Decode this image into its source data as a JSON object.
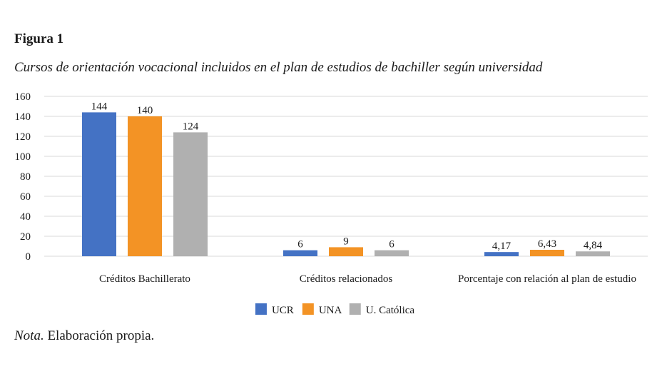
{
  "figure": {
    "label": "Figura 1",
    "caption": "Cursos de orientación vocacional incluidos en el plan de estudios de bachiller según universidad",
    "note_label": "Nota.",
    "note_text": " Elaboración propia."
  },
  "chart_data": {
    "type": "bar",
    "categories": [
      "Créditos Bachillerato",
      "Créditos relacionados",
      "Porcentaje con  relación al plan de estudio"
    ],
    "series": [
      {
        "name": "UCR",
        "color": "#4472c4",
        "values": [
          144,
          6,
          4.17
        ],
        "labels": [
          "144",
          "6",
          "4,17"
        ]
      },
      {
        "name": "UNA",
        "color": "#f39325",
        "values": [
          140,
          9,
          6.43
        ],
        "labels": [
          "140",
          "9",
          "6,43"
        ]
      },
      {
        "name": "U. Católica",
        "color": "#b0b0b0",
        "values": [
          124,
          6,
          4.84
        ],
        "labels": [
          "124",
          "6",
          "4,84"
        ]
      }
    ],
    "ylim": [
      0,
      160
    ],
    "yticks": [
      0,
      20,
      40,
      60,
      80,
      100,
      120,
      140,
      160
    ],
    "grid": true,
    "gridColor": "#d9d9d9",
    "legend": "bottom"
  }
}
